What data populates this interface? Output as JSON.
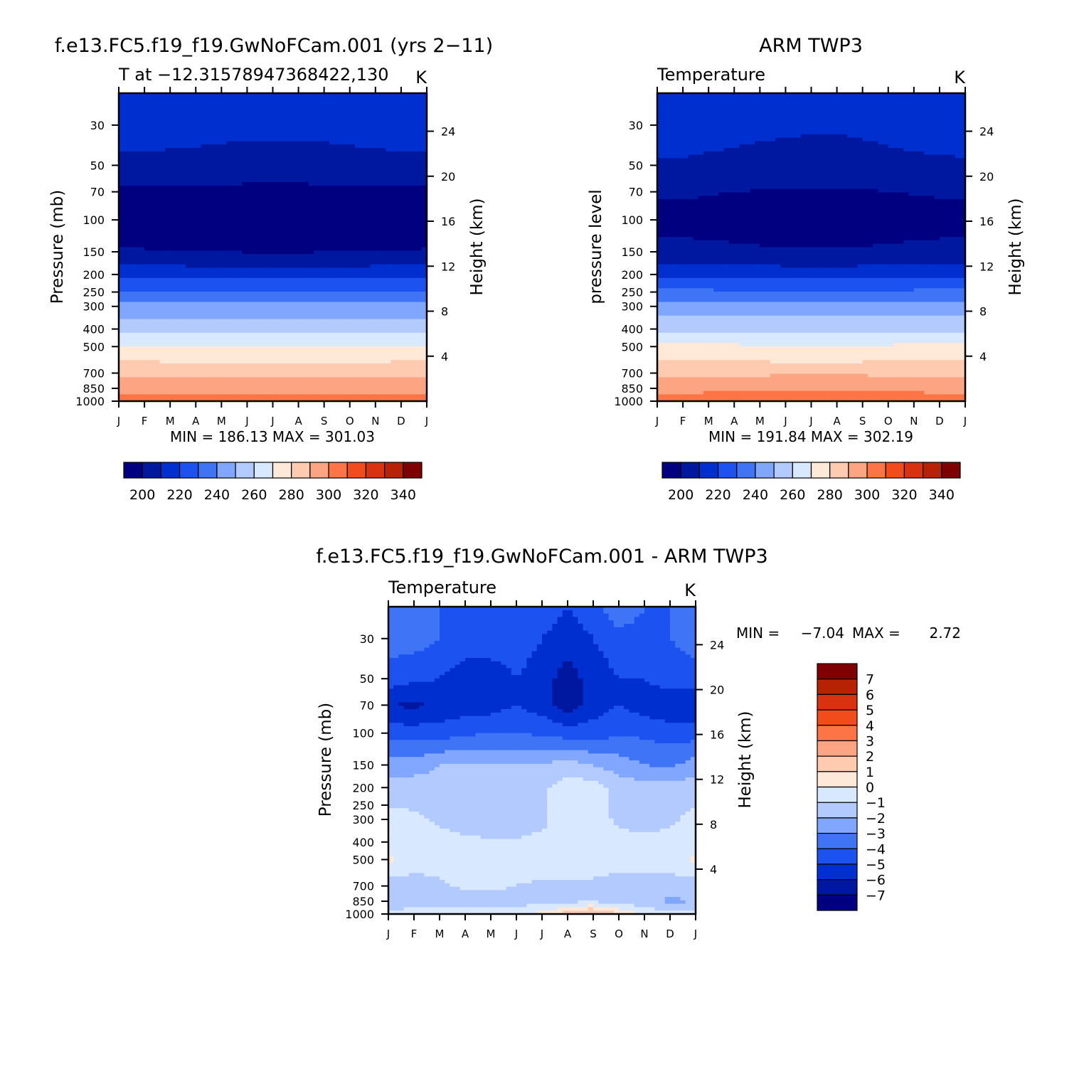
{
  "chart_data": [
    {
      "type": "heatmap",
      "id": "model",
      "title": "f.e13.FC5.f19_f19.GwNoFCam.001 (yrs 2-11)",
      "subtitle_left": "T at -12.31578947368422,130",
      "subtitle_right": "K",
      "ylabel": "Pressure (mb)",
      "ylabel_right": "Height (km)",
      "x_ticks": [
        "J",
        "F",
        "M",
        "A",
        "M",
        "J",
        "J",
        "A",
        "S",
        "O",
        "N",
        "D",
        "J"
      ],
      "y_ticks": [
        30,
        50,
        70,
        100,
        150,
        200,
        250,
        300,
        400,
        500,
        700,
        850,
        1000
      ],
      "height_ticks": [
        24,
        20,
        16,
        12,
        8,
        4
      ],
      "ylim": [
        20,
        1000
      ],
      "stats": "MIN = 186.13 MAX = 301.03",
      "min": 186.13,
      "max": 301.03,
      "profile_pressures": [
        20,
        30,
        50,
        70,
        100,
        150,
        200,
        250,
        300,
        400,
        500,
        700,
        850,
        1000
      ],
      "profile_values": [
        214,
        208,
        203,
        193,
        187,
        196,
        212,
        226,
        239,
        252,
        266,
        283,
        291,
        299
      ],
      "seasonal_shift": [
        0,
        0,
        0.3,
        0.6,
        1.0,
        1.4,
        1.5,
        1.5,
        1.2,
        0.8,
        0.4,
        0.1,
        0
      ]
    },
    {
      "type": "heatmap",
      "id": "obs",
      "title": "ARM TWP3",
      "subtitle_left": "Temperature",
      "subtitle_right": "K",
      "ylabel": "pressure level",
      "ylabel_right": "Height (km)",
      "x_ticks": [
        "J",
        "F",
        "M",
        "A",
        "M",
        "J",
        "J",
        "A",
        "S",
        "O",
        "N",
        "D",
        "J"
      ],
      "y_ticks": [
        30,
        50,
        70,
        100,
        150,
        200,
        250,
        300,
        400,
        500,
        700,
        850,
        1000
      ],
      "height_ticks": [
        24,
        20,
        16,
        12,
        8,
        4
      ],
      "ylim": [
        20,
        1000
      ],
      "stats": "MIN = 191.84 MAX = 302.19",
      "min": 191.84,
      "max": 302.19,
      "profile_pressures": [
        20,
        30,
        50,
        70,
        100,
        150,
        200,
        250,
        300,
        400,
        500,
        700,
        850,
        1000
      ],
      "profile_values": [
        212,
        208,
        204,
        196,
        192,
        198,
        213,
        227,
        240,
        253,
        267,
        283,
        292,
        301
      ],
      "seasonal_shift": [
        0,
        0,
        0.5,
        1.0,
        1.6,
        2.0,
        2.2,
        2.3,
        1.8,
        1.2,
        0.6,
        0.2,
        0
      ]
    },
    {
      "type": "heatmap",
      "id": "diff",
      "title": "f.e13.FC5.f19_f19.GwNoFCam.001 - ARM TWP3",
      "subtitle_left": "Temperature",
      "subtitle_right": "K",
      "ylabel": "Pressure (mb)",
      "ylabel_right": "Height (km)",
      "x_ticks": [
        "J",
        "F",
        "M",
        "A",
        "M",
        "J",
        "J",
        "A",
        "S",
        "O",
        "N",
        "D",
        "J"
      ],
      "y_ticks": [
        30,
        50,
        70,
        100,
        150,
        200,
        250,
        300,
        400,
        500,
        700,
        850,
        1000
      ],
      "height_ticks": [
        24,
        20,
        16,
        12,
        8,
        4
      ],
      "ylim": [
        20,
        1000
      ],
      "stats_min_label": "MIN =",
      "stats_min_value": "-7.04",
      "stats_max_label": "MAX =",
      "stats_max_value": "2.72",
      "min": -7.04,
      "max": 2.72,
      "grid_pressures": [
        20,
        30,
        50,
        70,
        100,
        150,
        200,
        300,
        400,
        500,
        700,
        850,
        1000
      ],
      "grid_values": [
        [
          -3.5,
          -3.5,
          -4.0,
          -4.5,
          -4.5,
          -4.5,
          -4.5,
          -5.0,
          -4.5,
          -3.0,
          -4.0,
          -4.0,
          -3.5
        ],
        [
          -3.5,
          -3.5,
          -4.0,
          -4.5,
          -4.5,
          -4.5,
          -5.0,
          -5.5,
          -5.0,
          -4.5,
          -4.5,
          -4.0,
          -3.5
        ],
        [
          -4.5,
          -4.8,
          -5.0,
          -5.5,
          -5.5,
          -5.0,
          -5.5,
          -6.5,
          -5.5,
          -5.0,
          -5.0,
          -4.5,
          -4.5
        ],
        [
          -6.0,
          -6.2,
          -5.8,
          -5.5,
          -5.5,
          -5.0,
          -5.5,
          -6.5,
          -5.5,
          -5.0,
          -5.5,
          -5.8,
          -6.0
        ],
        [
          -4.5,
          -4.5,
          -4.5,
          -4.2,
          -4.0,
          -4.0,
          -4.2,
          -4.5,
          -4.5,
          -4.2,
          -4.2,
          -4.5,
          -4.5
        ],
        [
          -2.5,
          -2.5,
          -2.0,
          -2.0,
          -2.0,
          -2.0,
          -2.0,
          -1.5,
          -2.0,
          -2.5,
          -3.0,
          -3.2,
          -2.5
        ],
        [
          -1.5,
          -1.5,
          -1.5,
          -1.5,
          -1.5,
          -1.5,
          -1.2,
          -0.5,
          -0.5,
          -1.5,
          -1.5,
          -1.5,
          -1.5
        ],
        [
          -0.7,
          -0.8,
          -1.2,
          -1.5,
          -1.5,
          -1.5,
          -1.2,
          -0.5,
          -0.5,
          -1.2,
          -1.5,
          -1.2,
          -0.7
        ],
        [
          -0.5,
          -0.5,
          -0.6,
          -0.8,
          -0.9,
          -0.9,
          -0.8,
          -0.6,
          -0.6,
          -0.6,
          -0.7,
          -0.6,
          -0.5
        ],
        [
          0.2,
          -0.5,
          -0.5,
          -0.5,
          -0.5,
          -0.5,
          -0.5,
          -0.5,
          -0.5,
          -0.5,
          -0.5,
          -0.5,
          0.2
        ],
        [
          -1.5,
          -1.5,
          -1.2,
          -0.8,
          -0.8,
          -1.0,
          -1.2,
          -1.2,
          -1.2,
          -1.5,
          -1.5,
          -1.5,
          -1.5
        ],
        [
          -1.5,
          -1.5,
          -1.5,
          -1.5,
          -1.5,
          -1.5,
          -1.5,
          -1.2,
          -1.2,
          -1.5,
          -1.8,
          -2.2,
          -2.0
        ],
        [
          -0.8,
          -0.6,
          -0.4,
          -0.4,
          -0.4,
          -0.2,
          0.3,
          1.5,
          2.6,
          1.0,
          -0.2,
          -0.6,
          -0.8
        ]
      ]
    }
  ],
  "colorbar_abs": {
    "levels": [
      195,
      205,
      215,
      225,
      235,
      245,
      255,
      265,
      275,
      285,
      295,
      305,
      315,
      325,
      335,
      345
    ],
    "labels": [
      "200",
      "220",
      "240",
      "260",
      "280",
      "300",
      "320",
      "340"
    ],
    "colors": [
      "#000080",
      "#0018a0",
      "#002fd0",
      "#1c52f0",
      "#3f74f5",
      "#80a6fd",
      "#b2cafe",
      "#d8e8fe",
      "#fee8d7",
      "#fecab0",
      "#fda583",
      "#fd7446",
      "#f24c1c",
      "#d83210",
      "#b82204",
      "#7e0002"
    ]
  },
  "colorbar_diff": {
    "levels": [
      -7,
      -6,
      -5,
      -4,
      -3,
      -2,
      -1,
      0,
      1,
      2,
      3,
      4,
      5,
      6,
      7
    ],
    "labels": [
      "7",
      "6",
      "5",
      "4",
      "3",
      "2",
      "1",
      "0",
      "-1",
      "-2",
      "-3",
      "-4",
      "-5",
      "-6",
      "-7"
    ],
    "colors": [
      "#000080",
      "#0018a0",
      "#002fd0",
      "#1c52f0",
      "#3f74f5",
      "#80a6fd",
      "#b2cafe",
      "#d8e8fe",
      "#fee8d7",
      "#fecab0",
      "#fda583",
      "#fd7446",
      "#f24c1c",
      "#d83210",
      "#b82204",
      "#7e0002"
    ]
  }
}
